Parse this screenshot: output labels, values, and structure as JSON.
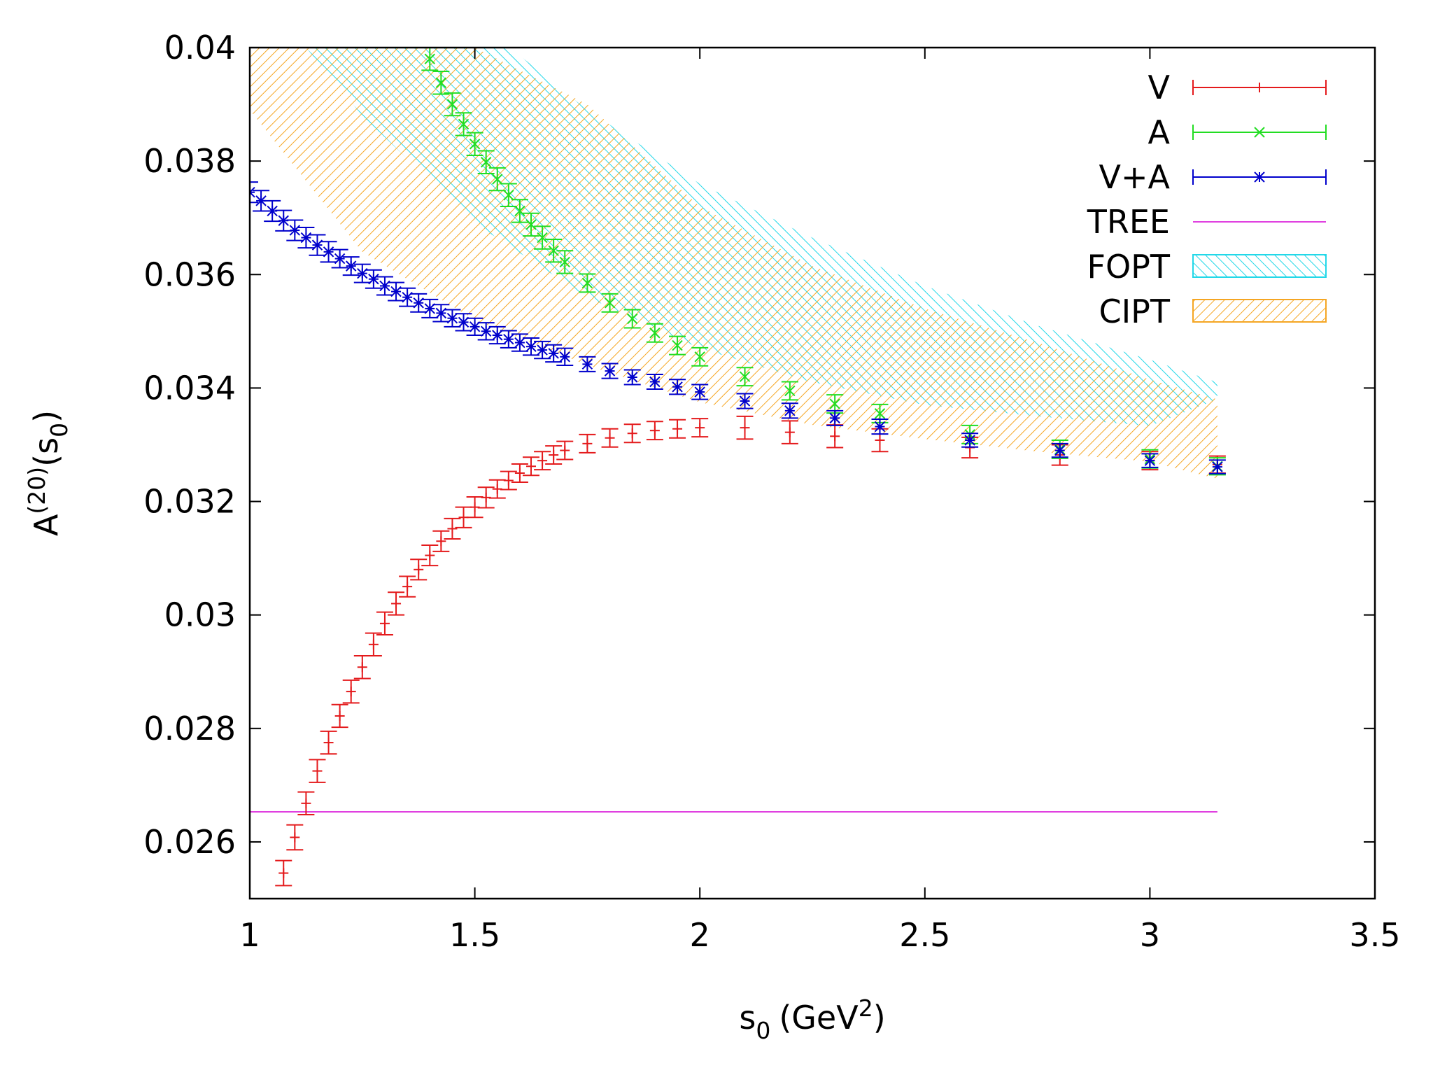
{
  "chart_data": {
    "type": "scatter",
    "title": "",
    "xlabel": "s",
    "xlabel_sub": "0",
    "xlabel_unit": "(GeV",
    "xlabel_sup": "2",
    "xlabel_close": ")",
    "ylabel": "A",
    "ylabel_sup": "(20)",
    "ylabel_arg_open": "(s",
    "ylabel_sub": "0",
    "ylabel_arg_close": ")",
    "xlim": [
      1,
      3.5
    ],
    "ylim": [
      0.025,
      0.04
    ],
    "xticks": [
      "1",
      "1.5",
      "2",
      "2.5",
      "3",
      "3.5"
    ],
    "yticks": [
      "0.026",
      "0.028",
      "0.03",
      "0.032",
      "0.034",
      "0.036",
      "0.038",
      "0.04"
    ],
    "grid": false,
    "legend_position": "top-right",
    "colors": {
      "V": "#e41a1c",
      "A": "#22dd22",
      "VA": "#0000cc",
      "TREE": "#e040e0",
      "FOPT": "#22d8e8",
      "CIPT": "#f5a623"
    },
    "series": [
      {
        "name": "V",
        "marker": "plus",
        "x": [
          1.075,
          1.1,
          1.125,
          1.15,
          1.175,
          1.2,
          1.225,
          1.25,
          1.275,
          1.3,
          1.325,
          1.35,
          1.375,
          1.4,
          1.425,
          1.45,
          1.475,
          1.5,
          1.525,
          1.55,
          1.575,
          1.6,
          1.625,
          1.65,
          1.675,
          1.7,
          1.75,
          1.8,
          1.85,
          1.9,
          1.95,
          2.0,
          2.1,
          2.2,
          2.3,
          2.4,
          2.6,
          2.8,
          3.0,
          3.15
        ],
        "y": [
          0.02545,
          0.02608,
          0.02668,
          0.02725,
          0.02775,
          0.02822,
          0.02865,
          0.02908,
          0.02948,
          0.02985,
          0.0302,
          0.0305,
          0.0308,
          0.03105,
          0.0313,
          0.03152,
          0.03172,
          0.0319,
          0.03207,
          0.03222,
          0.03237,
          0.0325,
          0.03262,
          0.03272,
          0.03282,
          0.0329,
          0.03302,
          0.03312,
          0.0332,
          0.03325,
          0.03328,
          0.0333,
          0.0333,
          0.03322,
          0.03315,
          0.03308,
          0.03295,
          0.03282,
          0.03272,
          0.03265
        ],
        "err": [
          0.00022,
          0.00022,
          0.0002,
          0.0002,
          0.0002,
          0.0002,
          0.0002,
          0.0002,
          0.0002,
          0.0002,
          0.0002,
          0.00018,
          0.00018,
          0.00018,
          0.00018,
          0.00018,
          0.00018,
          0.00018,
          0.00018,
          0.00016,
          0.00016,
          0.00016,
          0.00016,
          0.00016,
          0.00016,
          0.00016,
          0.00016,
          0.00016,
          0.00016,
          0.00016,
          0.00016,
          0.00016,
          0.0002,
          0.0002,
          0.0002,
          0.0002,
          0.00018,
          0.00018,
          0.00016,
          0.00015
        ]
      },
      {
        "name": "A",
        "marker": "cross",
        "x": [
          1.4,
          1.425,
          1.45,
          1.475,
          1.5,
          1.525,
          1.55,
          1.575,
          1.6,
          1.625,
          1.65,
          1.675,
          1.7,
          1.75,
          1.8,
          1.85,
          1.9,
          1.95,
          2.0,
          2.1,
          2.2,
          2.3,
          2.4,
          2.6,
          2.8,
          3.0,
          3.15
        ],
        "y": [
          0.0398,
          0.03938,
          0.039,
          0.03865,
          0.0383,
          0.03798,
          0.03768,
          0.0374,
          0.03712,
          0.03688,
          0.03665,
          0.03642,
          0.03622,
          0.03585,
          0.0355,
          0.03522,
          0.03497,
          0.03475,
          0.03455,
          0.0342,
          0.03395,
          0.03372,
          0.03355,
          0.03318,
          0.03292,
          0.03275,
          0.03262
        ],
        "err": [
          0.0002,
          0.0002,
          0.0002,
          0.0002,
          0.0002,
          0.0002,
          0.0002,
          0.0002,
          0.0002,
          0.0002,
          0.0002,
          0.0002,
          0.0002,
          0.00016,
          0.00016,
          0.00016,
          0.00016,
          0.00016,
          0.00016,
          0.00016,
          0.00016,
          0.00016,
          0.00016,
          0.00016,
          0.00016,
          0.00016,
          0.00015
        ]
      },
      {
        "name": "V+A",
        "marker": "star",
        "x": [
          1.0,
          1.025,
          1.05,
          1.075,
          1.1,
          1.125,
          1.15,
          1.175,
          1.2,
          1.225,
          1.25,
          1.275,
          1.3,
          1.325,
          1.35,
          1.375,
          1.4,
          1.425,
          1.45,
          1.475,
          1.5,
          1.525,
          1.55,
          1.575,
          1.6,
          1.625,
          1.65,
          1.675,
          1.7,
          1.75,
          1.8,
          1.85,
          1.9,
          1.95,
          2.0,
          2.1,
          2.2,
          2.3,
          2.4,
          2.6,
          2.8,
          3.0,
          3.15
        ],
        "y": [
          0.03745,
          0.0373,
          0.03712,
          0.03695,
          0.03678,
          0.03665,
          0.03652,
          0.0364,
          0.03628,
          0.03615,
          0.03602,
          0.03592,
          0.0358,
          0.0357,
          0.0356,
          0.0355,
          0.0354,
          0.03532,
          0.03523,
          0.03516,
          0.03508,
          0.035,
          0.03493,
          0.03486,
          0.0348,
          0.03473,
          0.03467,
          0.03461,
          0.03455,
          0.03442,
          0.0343,
          0.03419,
          0.03411,
          0.03402,
          0.03393,
          0.03377,
          0.0336,
          0.03347,
          0.03332,
          0.03308,
          0.0329,
          0.03272,
          0.03261
        ],
        "err": [
          0.00018,
          0.00018,
          0.00018,
          0.00018,
          0.00018,
          0.00018,
          0.00018,
          0.00018,
          0.00016,
          0.00016,
          0.00016,
          0.00016,
          0.00016,
          0.00016,
          0.00016,
          0.00016,
          0.00016,
          0.00015,
          0.00015,
          0.00015,
          0.00015,
          0.00015,
          0.00015,
          0.00015,
          0.00015,
          0.00015,
          0.00015,
          0.00015,
          0.00015,
          0.00013,
          0.00013,
          0.00013,
          0.00013,
          0.00013,
          0.00013,
          0.00013,
          0.00013,
          0.00013,
          0.00013,
          0.00012,
          0.00012,
          0.00012,
          0.00012
        ]
      },
      {
        "name": "TREE",
        "type": "line",
        "x": [
          1.0,
          3.15
        ],
        "y": [
          0.02653,
          0.02653
        ]
      },
      {
        "name": "FOPT",
        "type": "band",
        "x": [
          1.0,
          1.25,
          1.5,
          1.75,
          2.0,
          2.25,
          2.5,
          2.75,
          3.0,
          3.15
        ],
        "lower": [
          0.0412,
          0.0388,
          0.0369,
          0.0356,
          0.0347,
          0.0341,
          0.0337,
          0.0335,
          0.03333,
          0.0338
        ],
        "upper": [
          0.0437,
          0.0424,
          0.0405,
          0.0389,
          0.0376,
          0.03665,
          0.0358,
          0.0351,
          0.0345,
          0.0341
        ]
      },
      {
        "name": "CIPT",
        "type": "band",
        "x": [
          1.0,
          1.25,
          1.5,
          1.75,
          2.0,
          2.25,
          2.5,
          2.75,
          3.0,
          3.15
        ],
        "lower": [
          0.0389,
          0.0364,
          0.0352,
          0.0344,
          0.03375,
          0.03335,
          0.0331,
          0.03288,
          0.0327,
          0.0324
        ],
        "upper": [
          0.04,
          0.04,
          0.04,
          0.039,
          0.0372,
          0.03615,
          0.0354,
          0.0348,
          0.03415,
          0.0338
        ]
      }
    ]
  }
}
